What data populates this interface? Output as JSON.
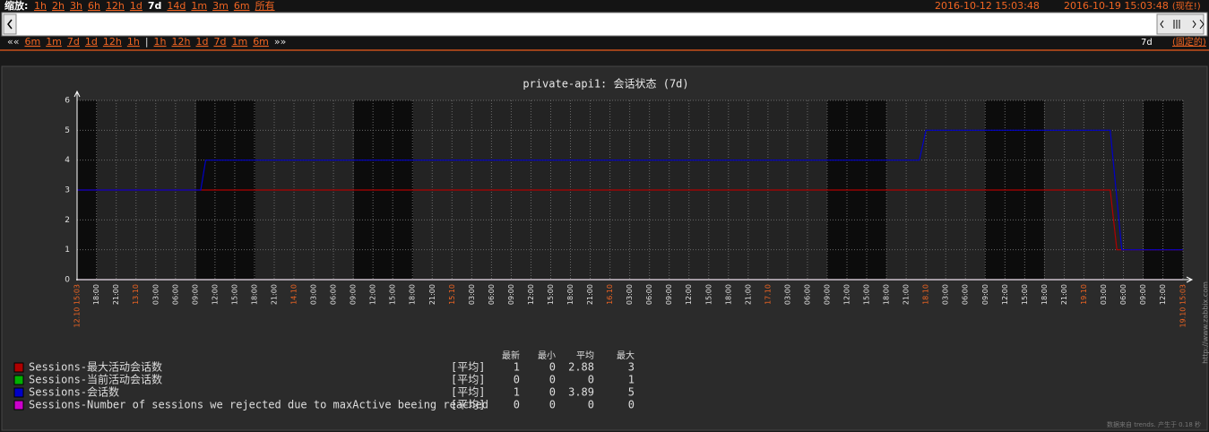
{
  "toolbar": {
    "zoom_label": "缩放:",
    "zoom_options": [
      "1h",
      "2h",
      "3h",
      "6h",
      "12h",
      "1d",
      "7d",
      "14d",
      "1m",
      "3m",
      "6m",
      "所有"
    ],
    "zoom_active": "7d",
    "from": "2016-10-12 15:03:48",
    "to": "2016-10-19 15:03:48",
    "now": "(现在!)",
    "back_label": "««",
    "back": [
      "6m",
      "1m",
      "7d",
      "1d",
      "12h",
      "1h"
    ],
    "separator": "|",
    "forward": [
      "1h",
      "12h",
      "1d",
      "7d",
      "1m",
      "6m"
    ],
    "forward_label": "»»",
    "period": "7d",
    "period_mode": "(固定的)"
  },
  "chart_data": {
    "type": "line",
    "title": "private-api1: 会话状态 (7d)",
    "xlim": [
      "12.10 15:03",
      "19.10 15:03"
    ],
    "xticks": [
      "12.10 15:03",
      {
        "value": "12.10 18:00",
        "label": "18:00"
      },
      {
        "value": "12.10 21:00",
        "label": "21:00"
      },
      {
        "value": "13.10 00:00",
        "label": "13.10"
      },
      {
        "value": "13.10 03:00",
        "label": "03:00"
      },
      {
        "value": "13.10 06:00",
        "label": "06:00"
      },
      {
        "value": "13.10 09:00",
        "label": "09:00"
      },
      {
        "value": "13.10 12:00",
        "label": "12:00"
      },
      {
        "value": "13.10 15:00",
        "label": "15:00"
      },
      {
        "value": "13.10 18:00",
        "label": "18:00"
      },
      {
        "value": "13.10 21:00",
        "label": "21:00"
      },
      {
        "value": "14.10 00:00",
        "label": "14.10"
      },
      {
        "value": "14.10 03:00",
        "label": "03:00"
      },
      {
        "value": "14.10 06:00",
        "label": "06:00"
      },
      {
        "value": "14.10 09:00",
        "label": "09:00"
      },
      {
        "value": "14.10 12:00",
        "label": "12:00"
      },
      {
        "value": "14.10 15:00",
        "label": "15:00"
      },
      {
        "value": "14.10 18:00",
        "label": "18:00"
      },
      {
        "value": "14.10 21:00",
        "label": "21:00"
      },
      {
        "value": "15.10 00:00",
        "label": "15.10"
      },
      {
        "value": "15.10 03:00",
        "label": "03:00"
      },
      {
        "value": "15.10 06:00",
        "label": "06:00"
      },
      {
        "value": "15.10 09:00",
        "label": "09:00"
      },
      {
        "value": "15.10 12:00",
        "label": "12:00"
      },
      {
        "value": "15.10 15:00",
        "label": "15:00"
      },
      {
        "value": "15.10 18:00",
        "label": "18:00"
      },
      {
        "value": "15.10 21:00",
        "label": "21:00"
      },
      {
        "value": "16.10 00:00",
        "label": "16.10"
      },
      {
        "value": "16.10 03:00",
        "label": "03:00"
      },
      {
        "value": "16.10 06:00",
        "label": "06:00"
      },
      {
        "value": "16.10 09:00",
        "label": "09:00"
      },
      {
        "value": "16.10 12:00",
        "label": "12:00"
      },
      {
        "value": "16.10 15:00",
        "label": "15:00"
      },
      {
        "value": "16.10 18:00",
        "label": "18:00"
      },
      {
        "value": "16.10 21:00",
        "label": "21:00"
      },
      {
        "value": "17.10 00:00",
        "label": "17.10"
      },
      {
        "value": "17.10 03:00",
        "label": "03:00"
      },
      {
        "value": "17.10 06:00",
        "label": "06:00"
      },
      {
        "value": "17.10 09:00",
        "label": "09:00"
      },
      {
        "value": "17.10 12:00",
        "label": "12:00"
      },
      {
        "value": "17.10 15:00",
        "label": "15:00"
      },
      {
        "value": "17.10 18:00",
        "label": "18:00"
      },
      {
        "value": "17.10 21:00",
        "label": "21:00"
      },
      {
        "value": "18.10 00:00",
        "label": "18.10"
      },
      {
        "value": "18.10 03:00",
        "label": "03:00"
      },
      {
        "value": "18.10 06:00",
        "label": "06:00"
      },
      {
        "value": "18.10 09:00",
        "label": "09:00"
      },
      {
        "value": "18.10 12:00",
        "label": "12:00"
      },
      {
        "value": "18.10 15:00",
        "label": "15:00"
      },
      {
        "value": "18.10 18:00",
        "label": "18:00"
      },
      {
        "value": "18.10 21:00",
        "label": "21:00"
      },
      {
        "value": "19.10 00:00",
        "label": "19.10"
      },
      {
        "value": "19.10 03:00",
        "label": "03:00"
      },
      {
        "value": "19.10 06:00",
        "label": "06:00"
      },
      {
        "value": "19.10 09:00",
        "label": "09:00"
      },
      {
        "value": "19.10 12:00",
        "label": "12:00"
      },
      "19.10 15:03"
    ],
    "ylim": [
      0,
      6
    ],
    "yticks": [
      0,
      1,
      2,
      3,
      4,
      5,
      6
    ],
    "grid": true,
    "legend_headers": [
      "最新",
      "最小",
      "平均",
      "最大"
    ],
    "series": [
      {
        "name": "Sessions-最大活动会话数",
        "color": "#b00000",
        "x": [
          "12.10 15:03",
          "19.10 04:00",
          "19.10 05:00",
          "19.10 15:03"
        ],
        "values": [
          3,
          3,
          1,
          1
        ],
        "func": "[平均]",
        "last": 1,
        "min": 0,
        "avg": 2.88,
        "max": 3
      },
      {
        "name": "Sessions-当前活动会话数",
        "color": "#00b000",
        "x": [
          "12.10 15:03",
          "19.10 15:03"
        ],
        "values": [
          0,
          0
        ],
        "func": "[平均]",
        "last": 0,
        "min": 0,
        "avg": 0,
        "max": 1
      },
      {
        "name": "Sessions-会话数",
        "color": "#0000c8",
        "x": [
          "12.10 15:03",
          "13.10 09:50",
          "13.10 10:35",
          "17.10 23:00",
          "18.10 00:00",
          "19.10 04:00",
          "19.10 05:45",
          "19.10 15:03"
        ],
        "values": [
          3,
          3,
          4,
          4,
          5,
          5,
          1,
          1
        ],
        "func": "[平均]",
        "last": 1,
        "min": 0,
        "avg": 3.89,
        "max": 5
      },
      {
        "name": "Sessions-Number of sessions we rejected due to maxActive beeing reached",
        "color": "#cc00cc",
        "x": [
          "12.10 15:03",
          "19.10 15:03"
        ],
        "values": [
          0,
          0
        ],
        "func": "[平均]",
        "last": 0,
        "min": 0,
        "avg": 0,
        "max": 0
      }
    ]
  },
  "footer": {
    "watermark": "http://www.zabbix.com",
    "note": "数据来自 trends. 产生于 0.18 秒"
  }
}
